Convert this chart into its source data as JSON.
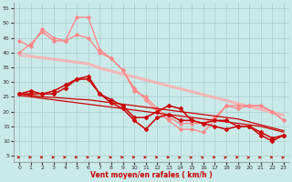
{
  "bg_color": "#caeaea",
  "grid_color": "#aacccc",
  "xlabel": "Vent moyen/en rafales ( km/h )",
  "xlabel_color": "#cc0000",
  "ylim": [
    3,
    57
  ],
  "xlim": [
    -0.5,
    23.5
  ],
  "yticks": [
    5,
    10,
    15,
    20,
    25,
    30,
    35,
    40,
    45,
    50,
    55
  ],
  "xticks": [
    0,
    1,
    2,
    3,
    4,
    5,
    6,
    7,
    8,
    9,
    10,
    11,
    12,
    13,
    14,
    15,
    16,
    17,
    18,
    19,
    20,
    21,
    22,
    23
  ],
  "series": [
    {
      "color": "#ffaaaa",
      "linewidth": 0.9,
      "marker": null,
      "y": [
        40,
        39,
        38.5,
        38,
        37.5,
        37,
        36.5,
        35,
        34,
        33,
        32,
        31,
        30,
        29,
        28,
        27,
        26,
        25,
        24,
        23,
        22,
        21,
        20,
        19
      ]
    },
    {
      "color": "#ffaaaa",
      "linewidth": 0.9,
      "marker": null,
      "y": [
        39,
        38.5,
        38,
        37.5,
        37,
        36.5,
        36,
        34.5,
        33.5,
        32.5,
        31.5,
        30.5,
        29.5,
        28.5,
        27.5,
        26.5,
        25.5,
        24.5,
        23.5,
        22.5,
        21.5,
        20.5,
        19.5,
        18.5
      ]
    },
    {
      "color": "#ff8888",
      "linewidth": 1.0,
      "marker": "D",
      "markersize": 1.8,
      "y": [
        44,
        42,
        48,
        45,
        44,
        52,
        52,
        41,
        38,
        34,
        28,
        24,
        20,
        17,
        14,
        14,
        13,
        17,
        22,
        21,
        22,
        22,
        20,
        17
      ]
    },
    {
      "color": "#ff8888",
      "linewidth": 1.0,
      "marker": "D",
      "markersize": 1.8,
      "y": [
        40,
        43,
        47,
        44,
        44,
        46,
        45,
        40,
        38,
        34,
        27,
        25,
        21,
        18,
        16,
        16,
        16,
        18,
        22,
        22,
        22,
        22,
        20,
        17
      ]
    },
    {
      "color": "#cc0000",
      "linewidth": 1.1,
      "marker": "D",
      "markersize": 2.0,
      "y": [
        26,
        27,
        26,
        27,
        29,
        31,
        31,
        26,
        24,
        22,
        18,
        18,
        20,
        22,
        21,
        17,
        16,
        17,
        17,
        15,
        15,
        13,
        11,
        12
      ]
    },
    {
      "color": "#cc0000",
      "linewidth": 1.1,
      "marker": "D",
      "markersize": 2.0,
      "y": [
        26,
        26,
        26,
        26,
        28,
        31,
        32,
        26,
        23,
        21,
        17,
        14,
        18,
        19,
        17,
        17,
        16,
        15,
        14,
        15,
        15,
        12,
        10,
        12
      ]
    },
    {
      "color": "#cc0000",
      "linewidth": 0.9,
      "marker": null,
      "y": [
        26,
        25.5,
        25,
        24.8,
        24.5,
        24.2,
        24,
        23.5,
        23,
        22.5,
        22,
        21.5,
        21,
        20.5,
        20,
        19.5,
        19,
        18.5,
        18,
        17.5,
        16.5,
        15.5,
        14.5,
        13.5
      ]
    },
    {
      "color": "#cc0000",
      "linewidth": 0.9,
      "marker": null,
      "y": [
        25.5,
        25,
        24.5,
        24,
        23.5,
        23,
        22.5,
        22,
        21.5,
        21,
        20.5,
        20,
        19.5,
        19,
        18.5,
        18,
        17.5,
        17,
        16.5,
        16,
        15.5,
        15,
        14,
        13
      ]
    }
  ],
  "arrows": {
    "color": "#cc0000",
    "y_data": 4.5,
    "angles_deg": [
      0,
      0,
      0,
      0,
      0,
      0,
      0,
      20,
      20,
      0,
      0,
      0,
      0,
      0,
      35,
      35,
      35,
      0,
      35,
      0,
      35,
      35,
      0,
      35
    ]
  }
}
